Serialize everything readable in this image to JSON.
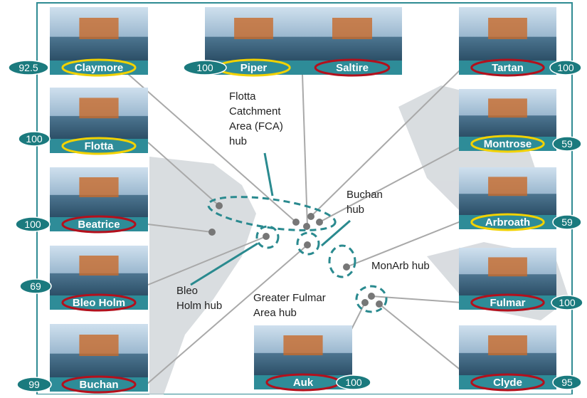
{
  "platforms": [
    {
      "name": "Claymore",
      "value": "92.5",
      "ring_color": "#f2d200"
    },
    {
      "name": "Piper",
      "value": "100",
      "ring_color": "#f2d200"
    },
    {
      "name": "Saltire",
      "ring_color": "#b3101c"
    },
    {
      "name": "Tartan",
      "value": "100",
      "ring_color": "#b3101c"
    },
    {
      "name": "Flotta",
      "value": "100",
      "ring_color": "#f2d200"
    },
    {
      "name": "Montrose",
      "value": "59",
      "ring_color": "#f2d200"
    },
    {
      "name": "Beatrice",
      "value": "100",
      "ring_color": "#b3101c"
    },
    {
      "name": "Arbroath",
      "value": "59",
      "ring_color": "#f2d200"
    },
    {
      "name": "Bleo Holm",
      "value": "69",
      "ring_color": "#b3101c"
    },
    {
      "name": "Fulmar",
      "value": "100",
      "ring_color": "#b3101c"
    },
    {
      "name": "Buchan",
      "value": "99",
      "ring_color": "#b3101c"
    },
    {
      "name": "Auk",
      "value": "100",
      "ring_color": "#b3101c"
    },
    {
      "name": "Clyde",
      "value": "95",
      "ring_color": "#b3101c"
    }
  ],
  "hubs": [
    {
      "lines": [
        "Flotta",
        "Catchment",
        "Area (FCA)",
        "hub"
      ]
    },
    {
      "lines": [
        "Buchan",
        "hub"
      ]
    },
    {
      "lines": [
        "MonArb hub"
      ]
    },
    {
      "lines": [
        "Bleo",
        "Holm hub"
      ]
    },
    {
      "lines": [
        "Greater Fulmar",
        "Area hub"
      ]
    }
  ]
}
